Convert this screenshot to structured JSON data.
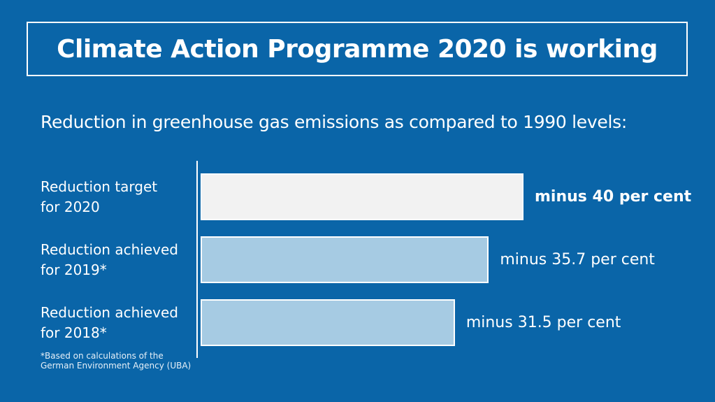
{
  "title": "Climate Action Programme 2020 is working",
  "subtitle": "Reduction in greenhouse gas emissions as compared to 1990 levels:",
  "footnote": {
    "line1": "*Based on calculations of the",
    "line2": "German Environment Agency (UBA)"
  },
  "colors": {
    "background": "#0a65a8",
    "target_bar": "#f2f2f2",
    "achieved_bar": "#a6cbe3",
    "text": "#ffffff"
  },
  "chart_data": {
    "type": "bar",
    "orientation": "horizontal",
    "categories": [
      "Reduction target for 2020",
      "Reduction achieved for 2019*",
      "Reduction achieved for 2018*"
    ],
    "category_lines": [
      [
        "Reduction target",
        "for 2020"
      ],
      [
        "Reduction achieved",
        "for 2019*"
      ],
      [
        "Reduction achieved",
        "for 2018*"
      ]
    ],
    "values": [
      40,
      35.7,
      31.5
    ],
    "value_labels": [
      "minus 40 per cent",
      "minus 35.7 per cent",
      "minus 31.5 per cent"
    ],
    "title": "Climate Action Programme 2020 is working",
    "subtitle": "Reduction in greenhouse gas emissions as compared to 1990 levels:",
    "xlabel": "",
    "ylabel": "",
    "grid": false,
    "legend": "none"
  }
}
